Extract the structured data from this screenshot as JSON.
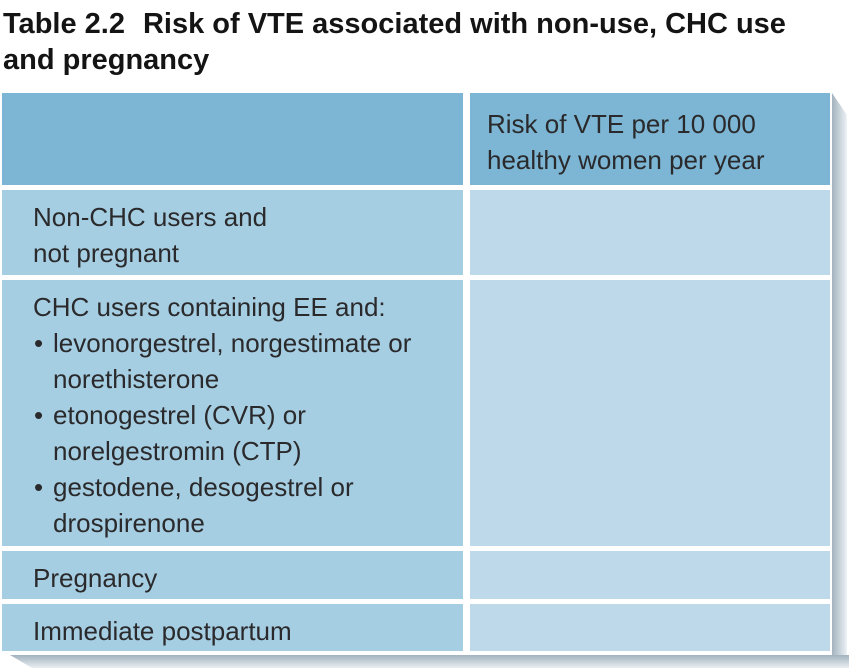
{
  "caption": {
    "label": "Table 2.2",
    "title": "Risk of VTE associated with non-use, CHC use and pregnancy"
  },
  "glyphs": {
    "bullet": "•"
  },
  "table": {
    "header": {
      "col1": "",
      "col2": "Risk of VTE per 10 000 healthy women per year"
    },
    "rows": [
      {
        "label": "Non-CHC users and not pregnant",
        "value": ""
      },
      {
        "label": "CHC users containing EE and:",
        "bullets": [
          "levonorgestrel, norgestimate or norethisterone",
          "etonogestrel (CVR) or norelgestromin (CTP)",
          "gestodene, desogestrel or drospirenone"
        ],
        "value": ""
      },
      {
        "label": "Pregnancy",
        "value": ""
      },
      {
        "label": "Immediate postpartum",
        "value": ""
      }
    ]
  },
  "colors": {
    "header_bg": "#7cb6d4",
    "label_bg": "#a6cee2",
    "value_bg": "#bdd9ea",
    "text": "#2a2a2c",
    "title_text": "#141414"
  }
}
